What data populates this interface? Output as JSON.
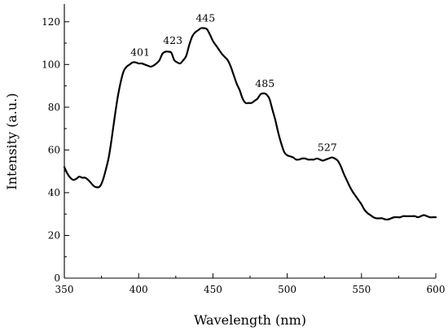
{
  "chart_data": {
    "type": "line",
    "title": "",
    "xlabel": "Wavelength (nm)",
    "ylabel": "Intensity (a.u.)",
    "xlim": [
      350,
      600
    ],
    "ylim": [
      0,
      130
    ],
    "x_ticks": [
      350,
      400,
      450,
      500,
      550,
      600
    ],
    "y_ticks": [
      0,
      20,
      40,
      60,
      80,
      100,
      120
    ],
    "grid": false,
    "series": [
      {
        "x": [
          350,
          352,
          354,
          356,
          358,
          360,
          362,
          364,
          366,
          368,
          370,
          372,
          374,
          376,
          378,
          380,
          382,
          384,
          386,
          388,
          390,
          392,
          394,
          396,
          398,
          400,
          402,
          404,
          406,
          408,
          410,
          412,
          414,
          416,
          418,
          420,
          422,
          424,
          426,
          428,
          430,
          432,
          434,
          436,
          438,
          440,
          442,
          444,
          446,
          448,
          450,
          452,
          454,
          456,
          458,
          460,
          462,
          464,
          466,
          468,
          470,
          472,
          474,
          476,
          478,
          480,
          482,
          484,
          486,
          488,
          490,
          492,
          494,
          496,
          498,
          500,
          502,
          504,
          506,
          508,
          510,
          512,
          514,
          516,
          518,
          520,
          522,
          524,
          526,
          528,
          530,
          532,
          534,
          536,
          538,
          540,
          542,
          544,
          546,
          548,
          550,
          552,
          554,
          556,
          558,
          560,
          562,
          564,
          566,
          568,
          570,
          572,
          574,
          576,
          578,
          580,
          582,
          584,
          586,
          588,
          590,
          592,
          594,
          596,
          598,
          600
        ],
        "y": [
          52,
          49,
          47,
          46,
          46.5,
          47.5,
          47,
          47,
          46,
          44.5,
          43,
          42.5,
          43,
          46,
          51,
          57,
          66,
          76,
          85,
          92,
          97,
          99,
          100,
          101,
          101,
          100.5,
          100.5,
          100,
          99.5,
          99,
          99.5,
          100.5,
          102,
          105,
          106,
          106,
          105.5,
          102,
          101,
          100.5,
          102,
          104,
          109,
          113,
          115,
          116,
          117,
          117,
          116.5,
          114,
          111,
          109,
          107,
          105,
          103.5,
          102,
          99,
          95,
          91,
          88,
          84,
          82,
          82,
          82,
          83,
          84,
          86,
          86.5,
          86,
          84,
          79,
          74,
          68,
          63,
          59,
          57.5,
          57,
          56.5,
          55.5,
          55.5,
          56,
          56,
          55.5,
          55.5,
          55.5,
          56,
          55.5,
          55,
          55.5,
          56,
          56.5,
          56,
          55,
          52.5,
          49,
          46,
          43,
          40.5,
          38.5,
          36.5,
          34.5,
          32,
          30.5,
          29.5,
          28.5,
          28,
          28,
          28,
          27.5,
          27.5,
          28,
          28.5,
          28.5,
          28.5,
          29,
          29,
          29,
          29,
          29,
          28.5,
          29,
          29.5,
          29,
          28.5,
          28.5,
          28.5
        ]
      }
    ],
    "annotations": [
      {
        "text": "401",
        "x": 401,
        "y": 101
      },
      {
        "text": "423",
        "x": 423,
        "y": 106.5
      },
      {
        "text": "445",
        "x": 445,
        "y": 117
      },
      {
        "text": "485",
        "x": 485,
        "y": 86.5
      },
      {
        "text": "527",
        "x": 527,
        "y": 56.5
      }
    ]
  }
}
